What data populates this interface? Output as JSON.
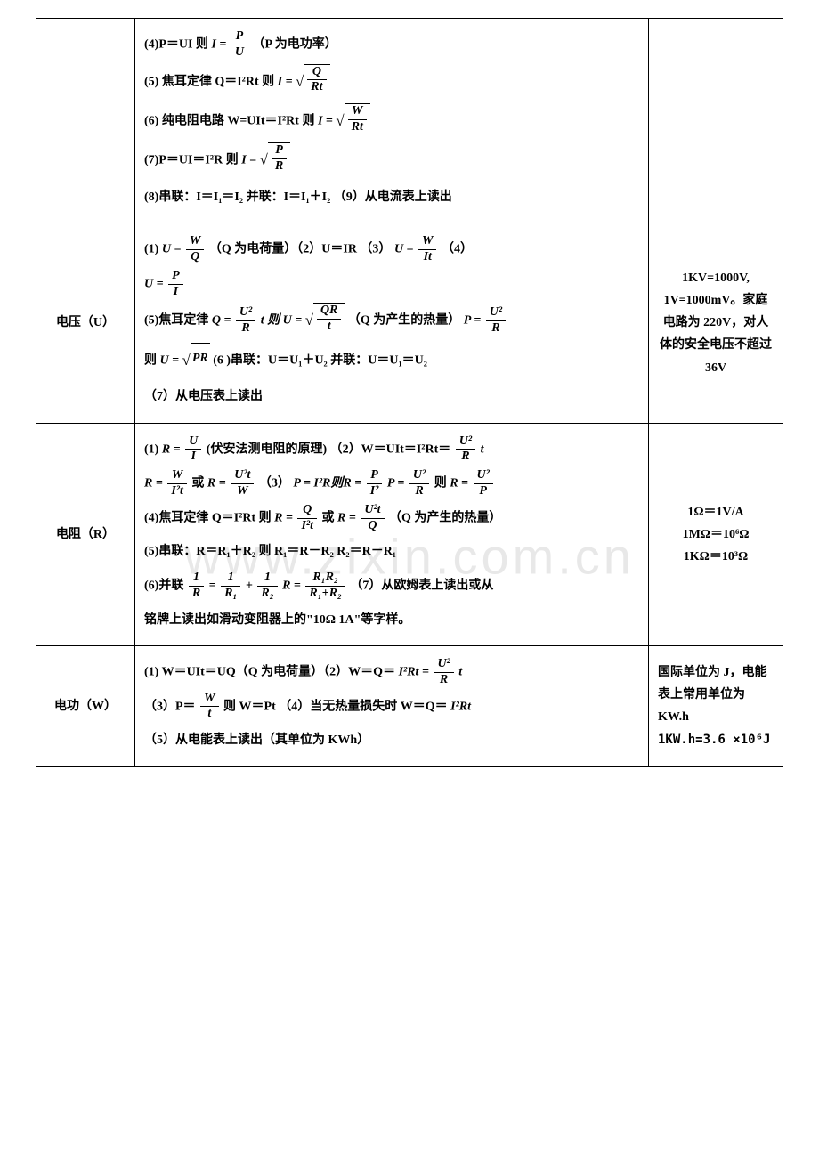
{
  "watermark": "www.zixin.com.cn",
  "rows": {
    "current": {
      "label": "",
      "f4_pre": "(4)P＝UI   则",
      "f4_eq": "I =",
      "f4_num": "P",
      "f4_den": "U",
      "f4_post": "（P 为电功率）",
      "f5_pre": "(5)  焦耳定律 Q＝I²Rt   则",
      "f5_eq": "I =",
      "f5_num": "Q",
      "f5_den": "Rt",
      "f6_pre": "(6)  纯电阻电路 W=UIt＝I²Rt  则",
      "f6_eq": "I =",
      "f6_num": "W",
      "f6_den": "Rt",
      "f7_pre": "(7)P＝UI＝I²R   则",
      "f7_eq": "I =",
      "f7_num": "P",
      "f7_den": "R",
      "f8": "(8)串联：I＝I₁＝I₂   并联：I＝I₁＋I₂  （9）从电流表上读出",
      "notes": ""
    },
    "voltage": {
      "label": "电压（U）",
      "f1_pre": "(1) ",
      "f1_eq": "U =",
      "f1_num": "W",
      "f1_den": "Q",
      "f1_post": "（Q 为电荷量）（2）U＝IR    （3）",
      "f1b_eq": "U =",
      "f1b_num": "W",
      "f1b_den": "It",
      "f1b_post": "   （4）",
      "f4_eq": "U =",
      "f4_num": "P",
      "f4_den": "I",
      "f5_pre": "(5)焦耳定律",
      "f5a_eq": "Q =",
      "f5a_num": "U²",
      "f5a_den": "R",
      "f5a_post": "t 则",
      "f5b_eq": "U =",
      "f5b_num": "QR",
      "f5b_den": "t",
      "f5b_post": " （Q 为产生的热量）",
      "f5c_eq": "P =",
      "f5c_num": "U²",
      "f5c_den": "R",
      "f6_pre": "则",
      "f6_eq": "U =",
      "f6_rad": "PR",
      "f6_post": "(6 )串联：U＝U₁＋U₂  并联：U＝U₁＝U₂",
      "f7": "（7）从电压表上读出",
      "notes": "1KV=1000V, 1V=1000mV。家庭电路为 220V，对人体的安全电压不超过 36V"
    },
    "resistance": {
      "label": "电阻（R）",
      "f1_pre": "(1) ",
      "f1_eq": "R =",
      "f1_num": "U",
      "f1_den": "I",
      "f1_post": "(伏安法测电阻的原理) （2）W＝UIt＝I²Rt＝",
      "f1b_num": "U²",
      "f1b_den": "R",
      "f1b_post": "t",
      "f2a_eq": "R =",
      "f2a_num": "W",
      "f2a_den": "I²t",
      "f2a_post": "或",
      "f2b_eq": "R =",
      "f2b_num": "U²t",
      "f2b_den": "W",
      "f2b_post": " （3） ",
      "f2c_eq": "P = I²R则R =",
      "f2c_num": "P",
      "f2c_den": "I²",
      "f2d_eq": "   P =",
      "f2d_num": "U²",
      "f2d_den": "R",
      "f2d_post": "则",
      "f2e_eq": "R =",
      "f2e_num": "U²",
      "f2e_den": "P",
      "f4_pre": "(4)焦耳定律 Q＝I²Rt   则",
      "f4a_eq": "R =",
      "f4a_num": "Q",
      "f4a_den": "I²t",
      "f4a_post": "或",
      "f4b_eq": "R =",
      "f4b_num": "U²t",
      "f4b_den": "Q",
      "f4b_post": " （Q 为产生的热量）",
      "f5": "(5)串联：R＝R₁＋R₂   则 R₁＝R－R₂    R₂＝R－R₁",
      "f6_pre": "(6)并联  ",
      "f6a_num1": "1",
      "f6a_den1": "R",
      "f6a_eq": "=",
      "f6a_num2": "1",
      "f6a_den2": "R₁",
      "f6a_plus": "+",
      "f6a_num3": "1",
      "f6a_den3": "R₂",
      "f6b_eq": "    R =",
      "f6b_num": "R₁R₂",
      "f6b_den": "R₁+R₂",
      "f6b_post": "    （7）从欧姆表上读出或从",
      "f7": "铭牌上读出如滑动变阻器上的\"10Ω   1A\"等字样。",
      "notes_l1": "1Ω＝1V/A",
      "notes_l2": "1MΩ＝10⁶Ω",
      "notes_l3": "1KΩ＝10³Ω"
    },
    "work": {
      "label": "电功（W）",
      "f1_pre": "(1)  W＝UIt＝UQ（Q 为电荷量）（2）W＝Q＝",
      "f1_eq": "I²Rt =",
      "f1_num": "U²",
      "f1_den": "R",
      "f1_post": "t",
      "f3_pre": " （3）P＝",
      "f3_num": "W",
      "f3_den": "t",
      "f3_post": "则 W＝Pt    （4）当无热量损失时 W＝Q＝",
      "f3_end": "I²Rt",
      "f5": "（5）从电能表上读出（其单位为 KWh）",
      "notes_l1": "国际单位为 J，电能表上常用单位为 KW.h",
      "notes_l2": "1KW.h=3.6 ×10⁶J"
    }
  }
}
